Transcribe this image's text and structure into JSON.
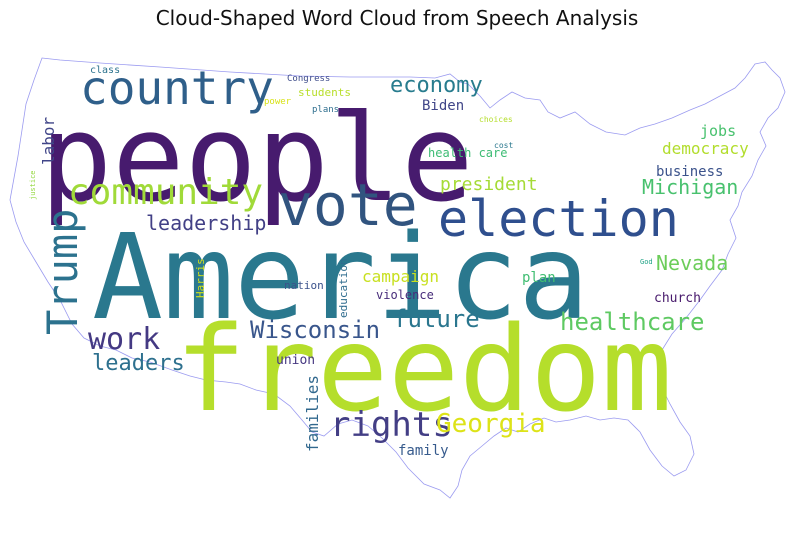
{
  "title": "Cloud-Shaped Word Cloud from Speech Analysis",
  "colors": {
    "outline": "#9b9bf0",
    "background": "#ffffff"
  },
  "words": [
    {
      "text": "people",
      "color": "#471b6e"
    },
    {
      "text": "America",
      "color": "#2a788e"
    },
    {
      "text": "freedom",
      "color": "#b5de2b"
    },
    {
      "text": "election",
      "color": "#2f4f8e"
    },
    {
      "text": "vote",
      "color": "#31547f"
    },
    {
      "text": "country",
      "color": "#2f5f8a"
    },
    {
      "text": "community",
      "color": "#a0da39"
    },
    {
      "text": "Trump",
      "color": "#2c728e"
    },
    {
      "text": "healthcare",
      "color": "#5ec962"
    },
    {
      "text": "work",
      "color": "#443983"
    },
    {
      "text": "Wisconsin",
      "color": "#39568c"
    },
    {
      "text": "rights",
      "color": "#433e85"
    },
    {
      "text": "Georgia",
      "color": "#dde318"
    },
    {
      "text": "leaders",
      "color": "#2d708e"
    },
    {
      "text": "economy",
      "color": "#287c8e"
    },
    {
      "text": "future",
      "color": "#2a768e"
    },
    {
      "text": "leadership",
      "color": "#424086"
    },
    {
      "text": "Michigan",
      "color": "#48c16e"
    },
    {
      "text": "Nevada",
      "color": "#6ccd5a"
    },
    {
      "text": "president",
      "color": "#a5db36"
    },
    {
      "text": "campaign",
      "color": "#c8e020"
    },
    {
      "text": "labor",
      "color": "#404588"
    },
    {
      "text": "democracy",
      "color": "#b2dd2d"
    },
    {
      "text": "jobs",
      "color": "#48c16e"
    },
    {
      "text": "business",
      "color": "#3b528b"
    },
    {
      "text": "families",
      "color": "#31688e"
    },
    {
      "text": "family",
      "color": "#375b8d"
    },
    {
      "text": "plan",
      "color": "#40bd72"
    },
    {
      "text": "health care",
      "color": "#3dbc74"
    },
    {
      "text": "Biden",
      "color": "#404688"
    },
    {
      "text": "church",
      "color": "#481a6c"
    },
    {
      "text": "union",
      "color": "#453781"
    },
    {
      "text": "education",
      "color": "#2f6c8e"
    },
    {
      "text": "violence",
      "color": "#472c7a"
    },
    {
      "text": "nation",
      "color": "#3b528b"
    },
    {
      "text": "students",
      "color": "#b8de29"
    },
    {
      "text": "Harris",
      "color": "#d0e11c"
    },
    {
      "text": "class",
      "color": "#2c738e"
    },
    {
      "text": "Congress",
      "color": "#3e4c8a"
    },
    {
      "text": "plans",
      "color": "#2e6e8e"
    },
    {
      "text": "power",
      "color": "#d8e219"
    },
    {
      "text": "choices",
      "color": "#b5de2b"
    },
    {
      "text": "cost",
      "color": "#2a788e"
    },
    {
      "text": "God",
      "color": "#20a386"
    },
    {
      "text": "justice",
      "color": "#95d840"
    }
  ]
}
